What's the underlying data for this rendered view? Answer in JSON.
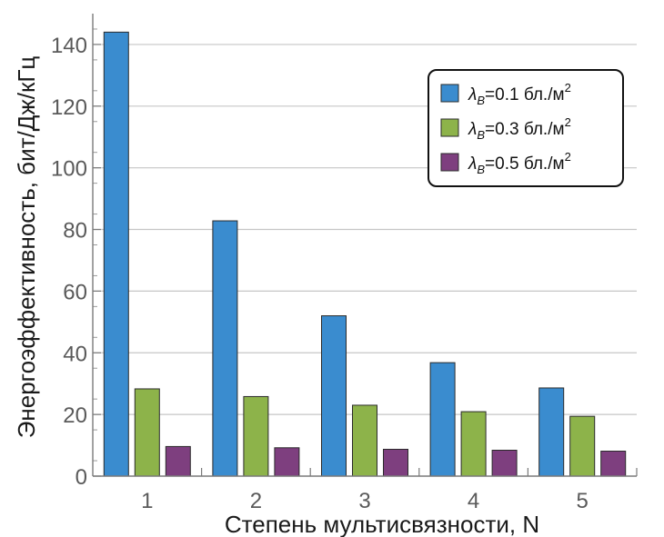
{
  "chart_data": {
    "type": "bar",
    "categories": [
      "1",
      "2",
      "3",
      "4",
      "5"
    ],
    "xlabel": "Степень мультисвязности, N",
    "ylabel": "Энергоэффективность, бит/Дж/кГц",
    "ylim": [
      0,
      150
    ],
    "yticks": [
      "0",
      "20",
      "40",
      "60",
      "80",
      "100",
      "120",
      "140"
    ],
    "grid": true,
    "legend_position": "top-right",
    "series": [
      {
        "name": "λB=0.1 бл./м2",
        "legend": {
          "lambda": "λ",
          "sub": "B",
          "value": "=0.1 бл./м",
          "sup": "2"
        },
        "color": "#3a8ccf",
        "values": [
          144,
          82.8,
          52,
          36.8,
          28.6
        ]
      },
      {
        "name": "λB=0.3 бл./м2",
        "legend": {
          "lambda": "λ",
          "sub": "B",
          "value": "=0.3 бл./м",
          "sup": "2"
        },
        "color": "#8db34a",
        "values": [
          28.3,
          25.8,
          23,
          20.9,
          19.4
        ]
      },
      {
        "name": "λB=0.5 бл./м2",
        "legend": {
          "lambda": "λ",
          "sub": "B",
          "value": "=0.5 бл./м",
          "sup": "2"
        },
        "color": "#7e3f7f",
        "values": [
          9.6,
          9.2,
          8.7,
          8.4,
          8.1
        ]
      }
    ]
  }
}
